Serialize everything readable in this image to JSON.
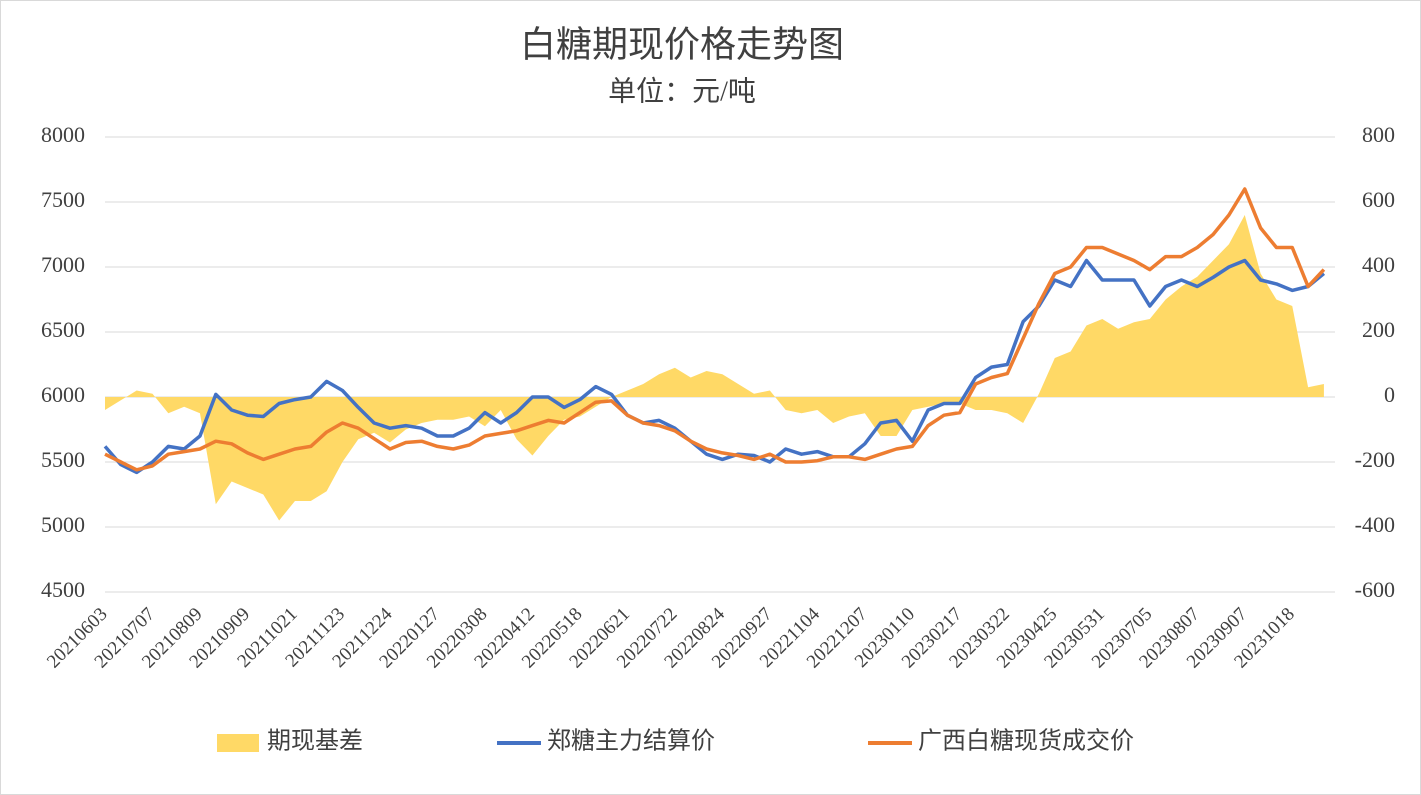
{
  "chart_data": {
    "type": "line",
    "title": "白糖期现价格走势图",
    "subtitle": "单位：元/吨",
    "categories": [
      "20210603",
      null,
      null,
      "20210707",
      null,
      null,
      "20210809",
      null,
      null,
      "20210909",
      null,
      null,
      "20211021",
      null,
      null,
      "20211123",
      null,
      null,
      "20211224",
      null,
      null,
      "20220127",
      null,
      null,
      "20220308",
      null,
      null,
      "20220412",
      null,
      null,
      "20220518",
      null,
      null,
      "20220621",
      null,
      null,
      "20220722",
      null,
      null,
      "20220824",
      null,
      null,
      "20220927",
      null,
      null,
      "20221104",
      null,
      null,
      "20221207",
      null,
      null,
      "20230110",
      null,
      null,
      "20230217",
      null,
      null,
      "20230322",
      null,
      null,
      "20230425",
      null,
      null,
      "20230531",
      null,
      null,
      "20230705",
      null,
      null,
      "20230807",
      null,
      null,
      "20230907",
      null,
      null,
      "20231018",
      null,
      null
    ],
    "series": [
      {
        "name": "期现基差",
        "type": "area",
        "axis": "y2",
        "color": "#ffd966",
        "values": [
          -40,
          -10,
          20,
          10,
          -50,
          -30,
          -50,
          -330,
          -260,
          -280,
          -300,
          -380,
          -320,
          -320,
          -290,
          -200,
          -130,
          -110,
          -140,
          -100,
          -80,
          -70,
          -70,
          -60,
          -90,
          -40,
          -130,
          -180,
          -120,
          -70,
          -60,
          -30,
          0,
          20,
          40,
          70,
          90,
          60,
          80,
          70,
          40,
          10,
          20,
          -40,
          -50,
          -40,
          -80,
          -60,
          -50,
          -120,
          -120,
          -40,
          -30,
          -20,
          -20,
          -40,
          -40,
          -50,
          -80,
          10,
          120,
          140,
          220,
          240,
          210,
          230,
          240,
          300,
          340,
          370,
          420,
          470,
          560,
          380,
          300,
          280,
          30,
          40
        ]
      },
      {
        "name": "郑糖主力结算价",
        "type": "line",
        "color": "#4472c4",
        "values": [
          5620,
          5480,
          5420,
          5500,
          5620,
          5600,
          5700,
          6020,
          5900,
          5860,
          5850,
          5950,
          5980,
          6000,
          6120,
          6050,
          5920,
          5800,
          5760,
          5780,
          5760,
          5700,
          5700,
          5760,
          5880,
          5800,
          5880,
          6000,
          6000,
          5920,
          5980,
          6080,
          6020,
          5860,
          5800,
          5820,
          5760,
          5660,
          5560,
          5520,
          5560,
          5550,
          5500,
          5600,
          5560,
          5580,
          5540,
          5540,
          5640,
          5800,
          5820,
          5660,
          5900,
          5950,
          5950,
          6150,
          6230,
          6250,
          6580,
          6700,
          6900,
          6850,
          7050,
          6900,
          6900,
          6900,
          6700,
          6850,
          6900,
          6850,
          6920,
          7000,
          7050,
          6900,
          6870,
          6820,
          6850,
          6950
        ]
      },
      {
        "name": "广西白糖现货成交价",
        "type": "line",
        "color": "#ed7d31",
        "values": [
          5560,
          5500,
          5440,
          5470,
          5560,
          5580,
          5600,
          5660,
          5640,
          5570,
          5520,
          5560,
          5600,
          5620,
          5730,
          5800,
          5760,
          5680,
          5600,
          5650,
          5660,
          5620,
          5600,
          5630,
          5700,
          5720,
          5740,
          5780,
          5820,
          5800,
          5880,
          5960,
          5970,
          5860,
          5800,
          5780,
          5740,
          5660,
          5600,
          5570,
          5550,
          5520,
          5560,
          5500,
          5500,
          5510,
          5540,
          5540,
          5520,
          5560,
          5600,
          5620,
          5780,
          5860,
          5880,
          6100,
          6150,
          6180,
          6450,
          6720,
          6950,
          7000,
          7150,
          7150,
          7100,
          7050,
          6980,
          7080,
          7080,
          7150,
          7250,
          7400,
          7600,
          7300,
          7150,
          7150,
          6850,
          6980
        ]
      }
    ],
    "ylim": [
      4500,
      8000
    ],
    "yticks": [
      4500,
      5000,
      5500,
      6000,
      6500,
      7000,
      7500,
      8000
    ],
    "y2lim": [
      -600,
      800
    ],
    "y2ticks": [
      -600,
      -400,
      -200,
      0,
      200,
      400,
      600,
      800
    ],
    "grid": true,
    "legend": "bottom"
  }
}
